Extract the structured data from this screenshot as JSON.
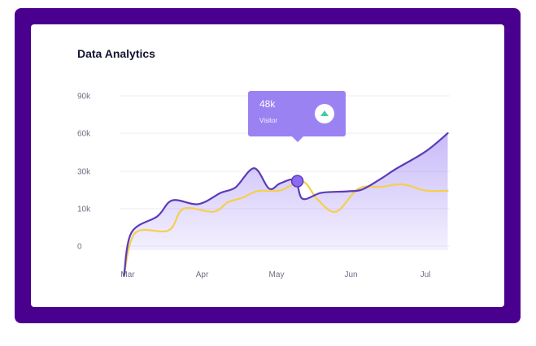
{
  "title": "Data Analytics",
  "tooltip": {
    "value": "48k",
    "label": "Visitor",
    "icon": "trend-up-icon",
    "icon_color": "#3ecfa3"
  },
  "colors": {
    "frame": "#4a008f",
    "purple": "#5b3bb8",
    "yellow": "#f5cf4c",
    "tooltip": "#9b82f3"
  },
  "chart_data": {
    "type": "line",
    "title": "Data Analytics",
    "xlabel": "",
    "ylabel": "",
    "categories": [
      "Mar",
      "Apr",
      "May",
      "Jun",
      "Jul"
    ],
    "y_ticks": [
      "0",
      "10k",
      "30k",
      "60k",
      "90k"
    ],
    "grid": true,
    "series": [
      {
        "color": "#5b3bb8",
        "area": true,
        "points": [
          [
            -0.05,
            -8
          ],
          [
            0.05,
            3.6
          ],
          [
            0.4,
            8
          ],
          [
            0.6,
            14.5
          ],
          [
            0.95,
            12.5
          ],
          [
            1.25,
            18.5
          ],
          [
            1.45,
            21.5
          ],
          [
            1.7,
            32.5
          ],
          [
            1.9,
            20.8
          ],
          [
            2.05,
            23.6
          ],
          [
            2.25,
            25.3
          ],
          [
            2.35,
            15.3
          ],
          [
            2.6,
            18.5
          ],
          [
            2.95,
            19.3
          ],
          [
            3.15,
            20.3
          ],
          [
            3.4,
            26
          ],
          [
            3.6,
            31.8
          ],
          [
            4.0,
            45.5
          ],
          [
            4.3,
            60
          ]
        ]
      },
      {
        "color": "#f5cf4c",
        "area": false,
        "points": [
          [
            -0.05,
            -8
          ],
          [
            0.1,
            3.5
          ],
          [
            0.55,
            4.2
          ],
          [
            0.75,
            10
          ],
          [
            1.15,
            9.2
          ],
          [
            1.35,
            13.5
          ],
          [
            1.55,
            16
          ],
          [
            1.75,
            19.5
          ],
          [
            2.05,
            19.8
          ],
          [
            2.35,
            24.6
          ],
          [
            2.55,
            15
          ],
          [
            2.8,
            9.2
          ],
          [
            3.1,
            20.8
          ],
          [
            3.4,
            21.7
          ],
          [
            3.7,
            23
          ],
          [
            4.0,
            19.8
          ],
          [
            4.3,
            19.6
          ]
        ]
      }
    ],
    "highlight": {
      "series": 0,
      "x": 2.28,
      "y": 24.8
    }
  }
}
